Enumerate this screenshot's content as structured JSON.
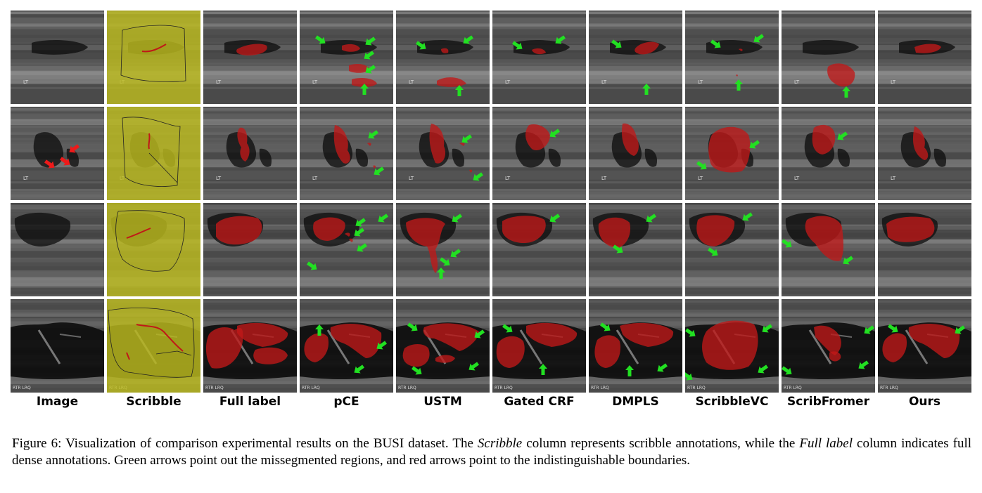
{
  "figure": {
    "columns": [
      "Image",
      "Scribble",
      "Full label",
      "pCE",
      "USTM",
      "Gated CRF",
      "DMPLS",
      "ScribbleVC",
      "ScribFromer",
      "Ours"
    ],
    "rows": 4,
    "image_watermarks": [
      "LT",
      "LT",
      "",
      "RTR LRQ"
    ],
    "colors": {
      "mask": "#c01818",
      "scribble_bg": "#bdbc1e",
      "green_arrow": "#22e022",
      "red_arrow": "#ee1a1a"
    }
  },
  "caption": {
    "prefix": "Figure 6: Visualization of comparison experimental results on the BUSI dataset. The ",
    "em1": "Scribble",
    "mid1": " column represents scribble annotations, while the ",
    "em2": "Full label",
    "suffix": " column indicates full dense annotations. Green arrows point out the missegmented regions, and red arrows point to the indistinguishable boundaries."
  }
}
